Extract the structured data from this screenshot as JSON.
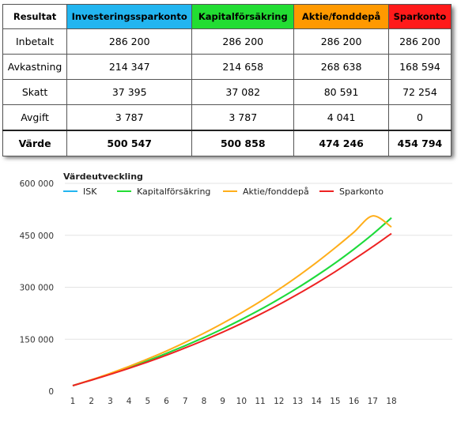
{
  "table": {
    "columns": [
      {
        "label": "Resultat",
        "color": "#ffffff"
      },
      {
        "label": "Investeringssparkonto",
        "color": "#22b5f0"
      },
      {
        "label": "Kapitalförsäkring",
        "color": "#22dd33"
      },
      {
        "label": "Aktie/fonddepå",
        "color": "#ff9900"
      },
      {
        "label": "Sparkonto",
        "color": "#ff1a1a"
      }
    ],
    "rows": [
      {
        "label": "Inbetalt",
        "values": [
          "286 200",
          "286 200",
          "286 200",
          "286 200"
        ]
      },
      {
        "label": "Avkastning",
        "values": [
          "214 347",
          "214 658",
          "268 638",
          "168 594"
        ]
      },
      {
        "label": "Skatt",
        "values": [
          "37 395",
          "37 082",
          "80 591",
          "72 254"
        ]
      },
      {
        "label": "Avgift",
        "values": [
          "3 787",
          "3 787",
          "4 041",
          "0"
        ]
      },
      {
        "label": "Värde",
        "values": [
          "500 547",
          "500 858",
          "474 246",
          "454 794"
        ]
      }
    ]
  },
  "chart_data": {
    "type": "line",
    "title": "Värdeutveckling",
    "legend_position": "top",
    "grid": true,
    "x": [
      1,
      2,
      3,
      4,
      5,
      6,
      7,
      8,
      9,
      10,
      11,
      12,
      13,
      14,
      15,
      16,
      17,
      18
    ],
    "ylim": [
      0,
      600000
    ],
    "yticks": [
      0,
      150000,
      300000,
      450000,
      600000
    ],
    "ytick_labels": [
      "0",
      "150 000",
      "300 000",
      "450 000",
      "600 000"
    ],
    "series": [
      {
        "name": "ISK",
        "color": "#22b5f0",
        "values": [
          16000,
          32500,
          50000,
          68500,
          88000,
          109000,
          131500,
          155000,
          180000,
          207000,
          235500,
          266000,
          298500,
          333000,
          370000,
          410000,
          453000,
          500000
        ]
      },
      {
        "name": "Kapitalförsäkring",
        "color": "#22dd33",
        "values": [
          16000,
          32500,
          50000,
          68500,
          88000,
          109000,
          131500,
          155000,
          180000,
          207000,
          235500,
          266000,
          298500,
          333000,
          370000,
          410000,
          453000,
          500500
        ]
      },
      {
        "name": "Aktie/fonddepå",
        "color": "#ffae1a",
        "values": [
          16000,
          33000,
          51500,
          71500,
          93000,
          116000,
          141000,
          167500,
          196000,
          226500,
          259000,
          294000,
          331500,
          371500,
          414000,
          459000,
          506000,
          474000
        ]
      },
      {
        "name": "Sparkonto",
        "color": "#ee2222",
        "values": [
          16000,
          32000,
          48500,
          66000,
          84500,
          104000,
          125000,
          147000,
          170500,
          195500,
          222000,
          250000,
          280000,
          311500,
          345000,
          380500,
          417000,
          455000
        ]
      }
    ]
  }
}
